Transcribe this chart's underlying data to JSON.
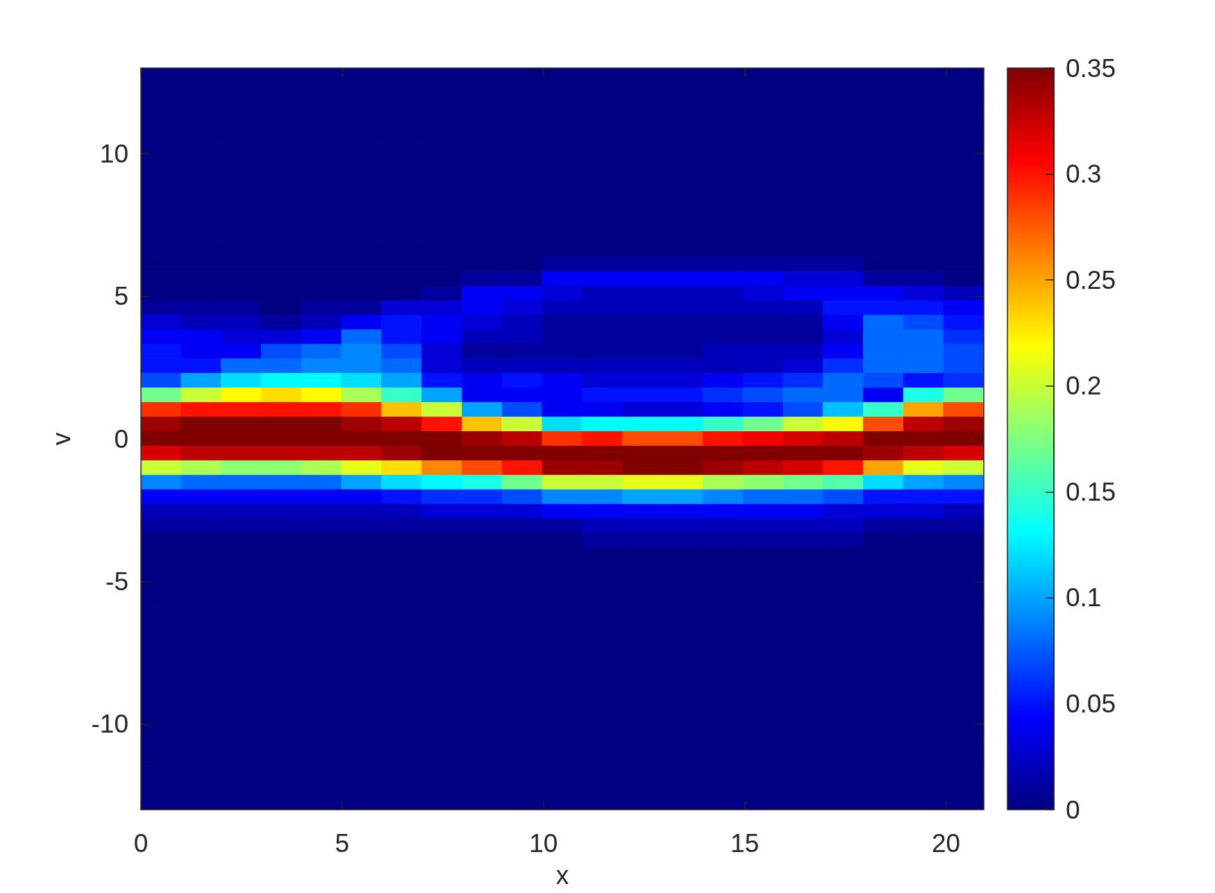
{
  "chart_data": {
    "type": "heatmap",
    "xlabel": "x",
    "ylabel": "v",
    "x": [
      0.5,
      1.5,
      2.49,
      3.49,
      4.49,
      5.48,
      6.48,
      7.48,
      8.48,
      9.47,
      10.47,
      11.47,
      12.46,
      13.46,
      14.46,
      15.46,
      16.45,
      17.45,
      18.45,
      19.44,
      20.44
    ],
    "xlim": [
      0,
      20.94
    ],
    "xticks": [
      0,
      5,
      10,
      15,
      20
    ],
    "ylim": [
      -13,
      13
    ],
    "yticks": [
      -10,
      -5,
      0,
      5,
      10
    ],
    "clim": [
      0,
      0.35
    ],
    "cticks": [
      0,
      0.05,
      0.1,
      0.15,
      0.2,
      0.25,
      0.3,
      0.35
    ],
    "cells": [
      [
        0,
        0,
        0,
        0,
        0,
        0,
        0,
        0,
        0,
        0,
        0,
        0,
        0,
        0,
        0,
        0,
        0,
        0,
        0,
        0,
        0
      ],
      [
        0,
        0,
        0,
        0,
        0,
        0,
        0,
        0,
        0,
        0,
        0,
        0,
        0,
        0,
        0,
        0,
        0,
        0,
        0,
        0,
        0
      ],
      [
        0,
        0,
        0,
        0,
        0,
        0,
        0,
        0,
        0,
        0,
        0,
        0,
        0,
        0,
        0,
        0,
        0,
        0,
        0,
        0,
        0
      ],
      [
        0,
        0,
        0,
        0,
        0,
        0,
        0,
        0,
        0,
        0,
        0,
        0,
        0,
        0,
        0,
        0,
        0,
        0,
        0,
        0,
        0
      ],
      [
        0,
        0,
        0,
        0,
        0,
        0,
        0,
        0,
        0,
        0,
        0,
        0,
        0,
        0,
        0,
        0,
        0,
        0,
        0,
        0,
        0
      ],
      [
        0,
        0,
        0,
        0,
        0,
        0,
        0,
        0,
        0,
        0,
        0,
        0,
        0,
        0,
        0,
        0,
        0,
        0,
        0,
        0,
        0
      ],
      [
        0,
        0,
        0,
        0,
        0,
        0,
        0,
        0,
        0,
        0,
        0,
        0,
        0,
        0,
        0,
        0,
        0,
        0,
        0,
        0,
        0
      ],
      [
        0,
        0,
        0,
        0,
        0,
        0,
        0,
        0,
        0,
        0,
        0,
        0,
        0,
        0,
        0,
        0,
        0,
        0,
        0,
        0,
        0
      ],
      [
        0,
        0,
        0,
        0,
        0,
        0,
        0,
        0,
        0,
        0,
        0,
        0,
        0,
        0,
        0,
        0,
        0,
        0,
        0,
        0,
        0
      ],
      [
        0,
        0,
        0,
        0,
        0,
        0,
        0,
        0,
        0,
        0,
        0,
        0,
        0,
        0,
        0,
        0,
        0,
        0,
        0,
        0,
        0
      ],
      [
        0,
        0,
        0,
        0,
        0,
        0,
        0,
        0,
        0,
        0,
        0,
        0,
        0,
        0,
        0,
        0,
        0,
        0,
        0,
        0,
        0
      ],
      [
        0,
        0,
        0,
        0,
        0,
        0,
        0,
        0,
        0,
        0,
        0,
        0,
        0,
        0,
        0,
        0,
        0,
        0,
        0,
        0,
        0
      ],
      [
        0,
        0,
        0,
        0,
        0,
        0,
        0,
        0,
        0,
        0,
        0,
        0,
        0,
        0,
        0,
        0,
        0,
        0,
        0,
        0,
        0
      ],
      [
        0,
        0,
        0,
        0,
        0,
        0,
        0,
        0,
        0,
        0,
        0.01,
        0.01,
        0.01,
        0.01,
        0.01,
        0.01,
        0.01,
        0.01,
        0,
        0,
        0
      ],
      [
        0,
        0,
        0,
        0,
        0,
        0,
        0,
        0,
        0.01,
        0.01,
        0.04,
        0.04,
        0.04,
        0.04,
        0.04,
        0.04,
        0.03,
        0.03,
        0.01,
        0.01,
        0
      ],
      [
        0,
        0,
        0,
        0,
        0,
        0,
        0,
        0.01,
        0.04,
        0.04,
        0.03,
        0.02,
        0.02,
        0.02,
        0.02,
        0.03,
        0.04,
        0.04,
        0.04,
        0.03,
        0.02
      ],
      [
        0.01,
        0.01,
        0.01,
        0,
        0.01,
        0.01,
        0.03,
        0.03,
        0.04,
        0.03,
        0.02,
        0.02,
        0.02,
        0.02,
        0.02,
        0.02,
        0.02,
        0.05,
        0.05,
        0.05,
        0.04
      ],
      [
        0.03,
        0.02,
        0.02,
        0.01,
        0.02,
        0.04,
        0.05,
        0.04,
        0.03,
        0.02,
        0.01,
        0.01,
        0.01,
        0.01,
        0.01,
        0.01,
        0.01,
        0.04,
        0.08,
        0.07,
        0.05
      ],
      [
        0.04,
        0.04,
        0.03,
        0.03,
        0.04,
        0.08,
        0.05,
        0.04,
        0.02,
        0.02,
        0.01,
        0.01,
        0.01,
        0.01,
        0.01,
        0.01,
        0.01,
        0.03,
        0.08,
        0.08,
        0.06
      ],
      [
        0.05,
        0.04,
        0.04,
        0.07,
        0.08,
        0.09,
        0.07,
        0.03,
        0.01,
        0.01,
        0.01,
        0.01,
        0.01,
        0.01,
        0.02,
        0.02,
        0.02,
        0.04,
        0.08,
        0.08,
        0.07
      ],
      [
        0.05,
        0.05,
        0.08,
        0.08,
        0.09,
        0.09,
        0.08,
        0.03,
        0.02,
        0.02,
        0.02,
        0.02,
        0.02,
        0.02,
        0.02,
        0.02,
        0.03,
        0.06,
        0.08,
        0.08,
        0.07
      ],
      [
        0.07,
        0.1,
        0.12,
        0.13,
        0.13,
        0.12,
        0.1,
        0.05,
        0.04,
        0.05,
        0.04,
        0.03,
        0.03,
        0.03,
        0.04,
        0.05,
        0.06,
        0.08,
        0.07,
        0.05,
        0.06
      ],
      [
        0.17,
        0.2,
        0.22,
        0.23,
        0.22,
        0.19,
        0.15,
        0.1,
        0.04,
        0.04,
        0.04,
        0.05,
        0.05,
        0.05,
        0.06,
        0.07,
        0.08,
        0.08,
        0.04,
        0.14,
        0.17
      ],
      [
        0.29,
        0.3,
        0.3,
        0.3,
        0.3,
        0.29,
        0.24,
        0.2,
        0.1,
        0.07,
        0.04,
        0.04,
        0.03,
        0.03,
        0.04,
        0.05,
        0.07,
        0.11,
        0.15,
        0.25,
        0.28
      ],
      [
        0.34,
        0.35,
        0.35,
        0.35,
        0.35,
        0.34,
        0.33,
        0.3,
        0.24,
        0.2,
        0.12,
        0.13,
        0.13,
        0.13,
        0.15,
        0.17,
        0.2,
        0.22,
        0.28,
        0.33,
        0.34
      ],
      [
        0.35,
        0.35,
        0.35,
        0.35,
        0.35,
        0.35,
        0.35,
        0.35,
        0.34,
        0.33,
        0.29,
        0.3,
        0.28,
        0.28,
        0.3,
        0.31,
        0.32,
        0.33,
        0.35,
        0.35,
        0.35
      ],
      [
        0.32,
        0.33,
        0.33,
        0.33,
        0.33,
        0.33,
        0.34,
        0.35,
        0.35,
        0.35,
        0.35,
        0.35,
        0.35,
        0.35,
        0.35,
        0.35,
        0.35,
        0.35,
        0.34,
        0.33,
        0.32
      ],
      [
        0.2,
        0.19,
        0.18,
        0.18,
        0.19,
        0.21,
        0.23,
        0.26,
        0.28,
        0.3,
        0.34,
        0.34,
        0.35,
        0.35,
        0.34,
        0.33,
        0.32,
        0.3,
        0.25,
        0.21,
        0.2
      ],
      [
        0.09,
        0.08,
        0.08,
        0.08,
        0.08,
        0.1,
        0.12,
        0.13,
        0.14,
        0.17,
        0.2,
        0.2,
        0.21,
        0.21,
        0.19,
        0.18,
        0.17,
        0.16,
        0.12,
        0.1,
        0.09
      ],
      [
        0.04,
        0.04,
        0.04,
        0.04,
        0.04,
        0.04,
        0.05,
        0.06,
        0.06,
        0.07,
        0.09,
        0.09,
        0.1,
        0.1,
        0.09,
        0.08,
        0.08,
        0.07,
        0.05,
        0.05,
        0.05
      ],
      [
        0.02,
        0.02,
        0.02,
        0.02,
        0.02,
        0.02,
        0.02,
        0.03,
        0.03,
        0.03,
        0.04,
        0.04,
        0.04,
        0.04,
        0.04,
        0.04,
        0.04,
        0.03,
        0.03,
        0.03,
        0.02
      ],
      [
        0.01,
        0.01,
        0.01,
        0.01,
        0.01,
        0.01,
        0.01,
        0.01,
        0.01,
        0.01,
        0.01,
        0.02,
        0.02,
        0.02,
        0.02,
        0.02,
        0.02,
        0.02,
        0.01,
        0.01,
        0.01
      ],
      [
        0,
        0,
        0,
        0,
        0,
        0,
        0,
        0,
        0,
        0,
        0,
        0.01,
        0.01,
        0.01,
        0.01,
        0.01,
        0.01,
        0.01,
        0,
        0,
        0
      ],
      [
        0,
        0,
        0,
        0,
        0,
        0,
        0,
        0,
        0,
        0,
        0,
        0,
        0,
        0,
        0,
        0,
        0,
        0,
        0,
        0,
        0
      ],
      [
        0,
        0,
        0,
        0,
        0,
        0,
        0,
        0,
        0,
        0,
        0,
        0,
        0,
        0,
        0,
        0,
        0,
        0,
        0,
        0,
        0
      ],
      [
        0,
        0,
        0,
        0,
        0,
        0,
        0,
        0,
        0,
        0,
        0,
        0,
        0,
        0,
        0,
        0,
        0,
        0,
        0,
        0,
        0
      ],
      [
        0,
        0,
        0,
        0,
        0,
        0,
        0,
        0,
        0,
        0,
        0,
        0,
        0,
        0,
        0,
        0,
        0,
        0,
        0,
        0,
        0
      ],
      [
        0,
        0,
        0,
        0,
        0,
        0,
        0,
        0,
        0,
        0,
        0,
        0,
        0,
        0,
        0,
        0,
        0,
        0,
        0,
        0,
        0
      ],
      [
        0,
        0,
        0,
        0,
        0,
        0,
        0,
        0,
        0,
        0,
        0,
        0,
        0,
        0,
        0,
        0,
        0,
        0,
        0,
        0,
        0
      ],
      [
        0,
        0,
        0,
        0,
        0,
        0,
        0,
        0,
        0,
        0,
        0,
        0,
        0,
        0,
        0,
        0,
        0,
        0,
        0,
        0,
        0
      ],
      [
        0,
        0,
        0,
        0,
        0,
        0,
        0,
        0,
        0,
        0,
        0,
        0,
        0,
        0,
        0,
        0,
        0,
        0,
        0,
        0,
        0
      ],
      [
        0,
        0,
        0,
        0,
        0,
        0,
        0,
        0,
        0,
        0,
        0,
        0,
        0,
        0,
        0,
        0,
        0,
        0,
        0,
        0,
        0
      ],
      [
        0,
        0,
        0,
        0,
        0,
        0,
        0,
        0,
        0,
        0,
        0,
        0,
        0,
        0,
        0,
        0,
        0,
        0,
        0,
        0,
        0
      ],
      [
        0,
        0,
        0,
        0,
        0,
        0,
        0,
        0,
        0,
        0,
        0,
        0,
        0,
        0,
        0,
        0,
        0,
        0,
        0,
        0,
        0
      ],
      [
        0,
        0,
        0,
        0,
        0,
        0,
        0,
        0,
        0,
        0,
        0,
        0,
        0,
        0,
        0,
        0,
        0,
        0,
        0,
        0,
        0
      ],
      [
        0,
        0,
        0,
        0,
        0,
        0,
        0,
        0,
        0,
        0,
        0,
        0,
        0,
        0,
        0,
        0,
        0,
        0,
        0,
        0,
        0
      ],
      [
        0,
        0,
        0,
        0,
        0,
        0,
        0,
        0,
        0,
        0,
        0,
        0,
        0,
        0,
        0,
        0,
        0,
        0,
        0,
        0,
        0
      ],
      [
        0,
        0,
        0,
        0,
        0,
        0,
        0,
        0,
        0,
        0,
        0,
        0,
        0,
        0,
        0,
        0,
        0,
        0,
        0,
        0,
        0
      ],
      [
        0,
        0,
        0,
        0,
        0,
        0,
        0,
        0,
        0,
        0,
        0,
        0,
        0,
        0,
        0,
        0,
        0,
        0,
        0,
        0,
        0
      ],
      [
        0,
        0,
        0,
        0,
        0,
        0,
        0,
        0,
        0,
        0,
        0,
        0,
        0,
        0,
        0,
        0,
        0,
        0,
        0,
        0,
        0
      ],
      [
        0,
        0,
        0,
        0,
        0,
        0,
        0,
        0,
        0,
        0,
        0,
        0,
        0,
        0,
        0,
        0,
        0,
        0,
        0,
        0,
        0
      ]
    ]
  }
}
